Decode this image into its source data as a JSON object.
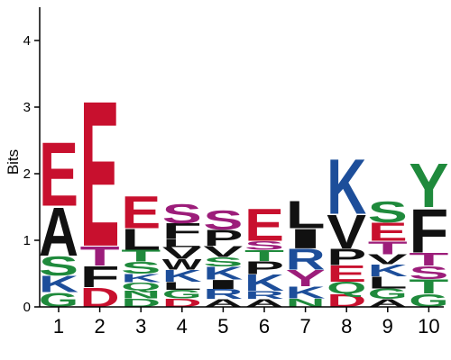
{
  "chart_data": {
    "type": "sequence-logo",
    "ylabel": "Bits",
    "ylim": [
      0,
      4.5
    ],
    "yticks": [
      0,
      1,
      2,
      3,
      4
    ],
    "grid": false,
    "legend": "none",
    "colors": {
      "acidic": "#c8102e",
      "hydrophobic": "#111111",
      "polar": "#1f8a3c",
      "basic": "#1d4e9a",
      "amide": "#9c1d7a"
    },
    "residue_colors": {
      "E": "#c8102e",
      "D": "#c8102e",
      "A": "#111111",
      "L": "#111111",
      "F": "#111111",
      "P": "#111111",
      "I": "#111111",
      "V": "#111111",
      "W": "#111111",
      "M": "#111111",
      "S": "#1f8a3c",
      "G": "#1f8a3c",
      "T": "#1f8a3c",
      "Y": "#1f8a3c",
      "N": "#1f8a3c",
      "C": "#1f8a3c",
      "K": "#1d4e9a",
      "R": "#1d4e9a",
      "H": "#1d4e9a",
      "Q": "#9c1d7a"
    },
    "positions": [
      {
        "label": "1",
        "stack": [
          {
            "letter": "G",
            "bits": 0.22,
            "color": "#1f8a3c"
          },
          {
            "letter": "K",
            "bits": 0.25,
            "color": "#1d4e9a"
          },
          {
            "letter": "S",
            "bits": 0.3,
            "color": "#1f8a3c"
          },
          {
            "letter": "A",
            "bits": 0.75,
            "color": "#111111"
          },
          {
            "letter": "E",
            "bits": 0.98,
            "color": "#c8102e"
          }
        ]
      },
      {
        "label": "2",
        "stack": [
          {
            "letter": "D",
            "bits": 0.3,
            "color": "#c8102e"
          },
          {
            "letter": "F",
            "bits": 0.32,
            "color": "#111111"
          },
          {
            "letter": "T",
            "bits": 0.3,
            "color": "#9c1d7a"
          },
          {
            "letter": "E",
            "bits": 2.25,
            "color": "#c8102e"
          }
        ]
      },
      {
        "label": "3",
        "stack": [
          {
            "letter": "D",
            "bits": 0.13,
            "color": "#1f8a3c"
          },
          {
            "letter": "N",
            "bits": 0.12,
            "color": "#1f8a3c"
          },
          {
            "letter": "Q",
            "bits": 0.12,
            "color": "#1f8a3c"
          },
          {
            "letter": "K",
            "bits": 0.13,
            "color": "#1d4e9a"
          },
          {
            "letter": "S",
            "bits": 0.18,
            "color": "#1f8a3c"
          },
          {
            "letter": "T",
            "bits": 0.18,
            "color": "#1f8a3c"
          },
          {
            "letter": "L",
            "bits": 0.32,
            "color": "#111111"
          },
          {
            "letter": "E",
            "bits": 0.5,
            "color": "#c8102e"
          }
        ]
      },
      {
        "label": "4",
        "stack": [
          {
            "letter": "D",
            "bits": 0.13,
            "color": "#c8102e"
          },
          {
            "letter": "G",
            "bits": 0.13,
            "color": "#1f8a3c"
          },
          {
            "letter": "L",
            "bits": 0.12,
            "color": "#111111"
          },
          {
            "letter": "K",
            "bits": 0.18,
            "color": "#1d4e9a"
          },
          {
            "letter": "W",
            "bits": 0.16,
            "color": "#111111"
          },
          {
            "letter": "V",
            "bits": 0.18,
            "color": "#111111"
          },
          {
            "letter": "L",
            "bits": 0.12,
            "color": "#111111"
          },
          {
            "letter": "F",
            "bits": 0.24,
            "color": "#111111"
          },
          {
            "letter": "S",
            "bits": 0.3,
            "color": "#9c1d7a"
          }
        ]
      },
      {
        "label": "5",
        "stack": [
          {
            "letter": "A",
            "bits": 0.12,
            "color": "#111111"
          },
          {
            "letter": "R",
            "bits": 0.15,
            "color": "#1d4e9a"
          },
          {
            "letter": "I",
            "bits": 0.14,
            "color": "#111111"
          },
          {
            "letter": "K",
            "bits": 0.2,
            "color": "#1d4e9a"
          },
          {
            "letter": "S",
            "bits": 0.14,
            "color": "#1f8a3c"
          },
          {
            "letter": "V",
            "bits": 0.17,
            "color": "#111111"
          },
          {
            "letter": "P",
            "bits": 0.24,
            "color": "#111111"
          },
          {
            "letter": "S",
            "bits": 0.3,
            "color": "#9c1d7a"
          }
        ]
      },
      {
        "label": "6",
        "stack": [
          {
            "letter": "A",
            "bits": 0.12,
            "color": "#111111"
          },
          {
            "letter": "R",
            "bits": 0.12,
            "color": "#1d4e9a"
          },
          {
            "letter": "K",
            "bits": 0.25,
            "color": "#1d4e9a"
          },
          {
            "letter": "P",
            "bits": 0.2,
            "color": "#111111"
          },
          {
            "letter": "T",
            "bits": 0.17,
            "color": "#1f8a3c"
          },
          {
            "letter": "S",
            "bits": 0.13,
            "color": "#9c1d7a"
          },
          {
            "letter": "E",
            "bits": 0.5,
            "color": "#c8102e"
          }
        ]
      },
      {
        "label": "7",
        "stack": [
          {
            "letter": "N",
            "bits": 0.13,
            "color": "#1f8a3c"
          },
          {
            "letter": "K",
            "bits": 0.18,
            "color": "#1d4e9a"
          },
          {
            "letter": "Y",
            "bits": 0.25,
            "color": "#9c1d7a"
          },
          {
            "letter": "R",
            "bits": 0.32,
            "color": "#1d4e9a"
          },
          {
            "letter": "I",
            "bits": 0.3,
            "color": "#111111"
          },
          {
            "letter": "L",
            "bits": 0.42,
            "color": "#111111"
          }
        ]
      },
      {
        "label": "8",
        "stack": [
          {
            "letter": "D",
            "bits": 0.2,
            "color": "#c8102e"
          },
          {
            "letter": "Q",
            "bits": 0.18,
            "color": "#1f8a3c"
          },
          {
            "letter": "E",
            "bits": 0.25,
            "color": "#c8102e"
          },
          {
            "letter": "P",
            "bits": 0.25,
            "color": "#111111"
          },
          {
            "letter": "V",
            "bits": 0.52,
            "color": "#111111"
          },
          {
            "letter": "K",
            "bits": 0.85,
            "color": "#1d4e9a"
          }
        ]
      },
      {
        "label": "9",
        "stack": [
          {
            "letter": "A",
            "bits": 0.12,
            "color": "#111111"
          },
          {
            "letter": "G",
            "bits": 0.16,
            "color": "#1f8a3c"
          },
          {
            "letter": "L",
            "bits": 0.18,
            "color": "#111111"
          },
          {
            "letter": "K",
            "bits": 0.18,
            "color": "#1d4e9a"
          },
          {
            "letter": "V",
            "bits": 0.15,
            "color": "#111111"
          },
          {
            "letter": "T",
            "bits": 0.2,
            "color": "#9c1d7a"
          },
          {
            "letter": "E",
            "bits": 0.28,
            "color": "#c8102e"
          },
          {
            "letter": "S",
            "bits": 0.32,
            "color": "#1f8a3c"
          }
        ]
      },
      {
        "label": "10",
        "stack": [
          {
            "letter": "G",
            "bits": 0.2,
            "color": "#1f8a3c"
          },
          {
            "letter": "T",
            "bits": 0.22,
            "color": "#1f8a3c"
          },
          {
            "letter": "S",
            "bits": 0.2,
            "color": "#9c1d7a"
          },
          {
            "letter": "T",
            "bits": 0.2,
            "color": "#9c1d7a"
          },
          {
            "letter": "F",
            "bits": 0.68,
            "color": "#111111"
          },
          {
            "letter": "Y",
            "bits": 0.68,
            "color": "#1f8a3c"
          }
        ]
      }
    ]
  }
}
